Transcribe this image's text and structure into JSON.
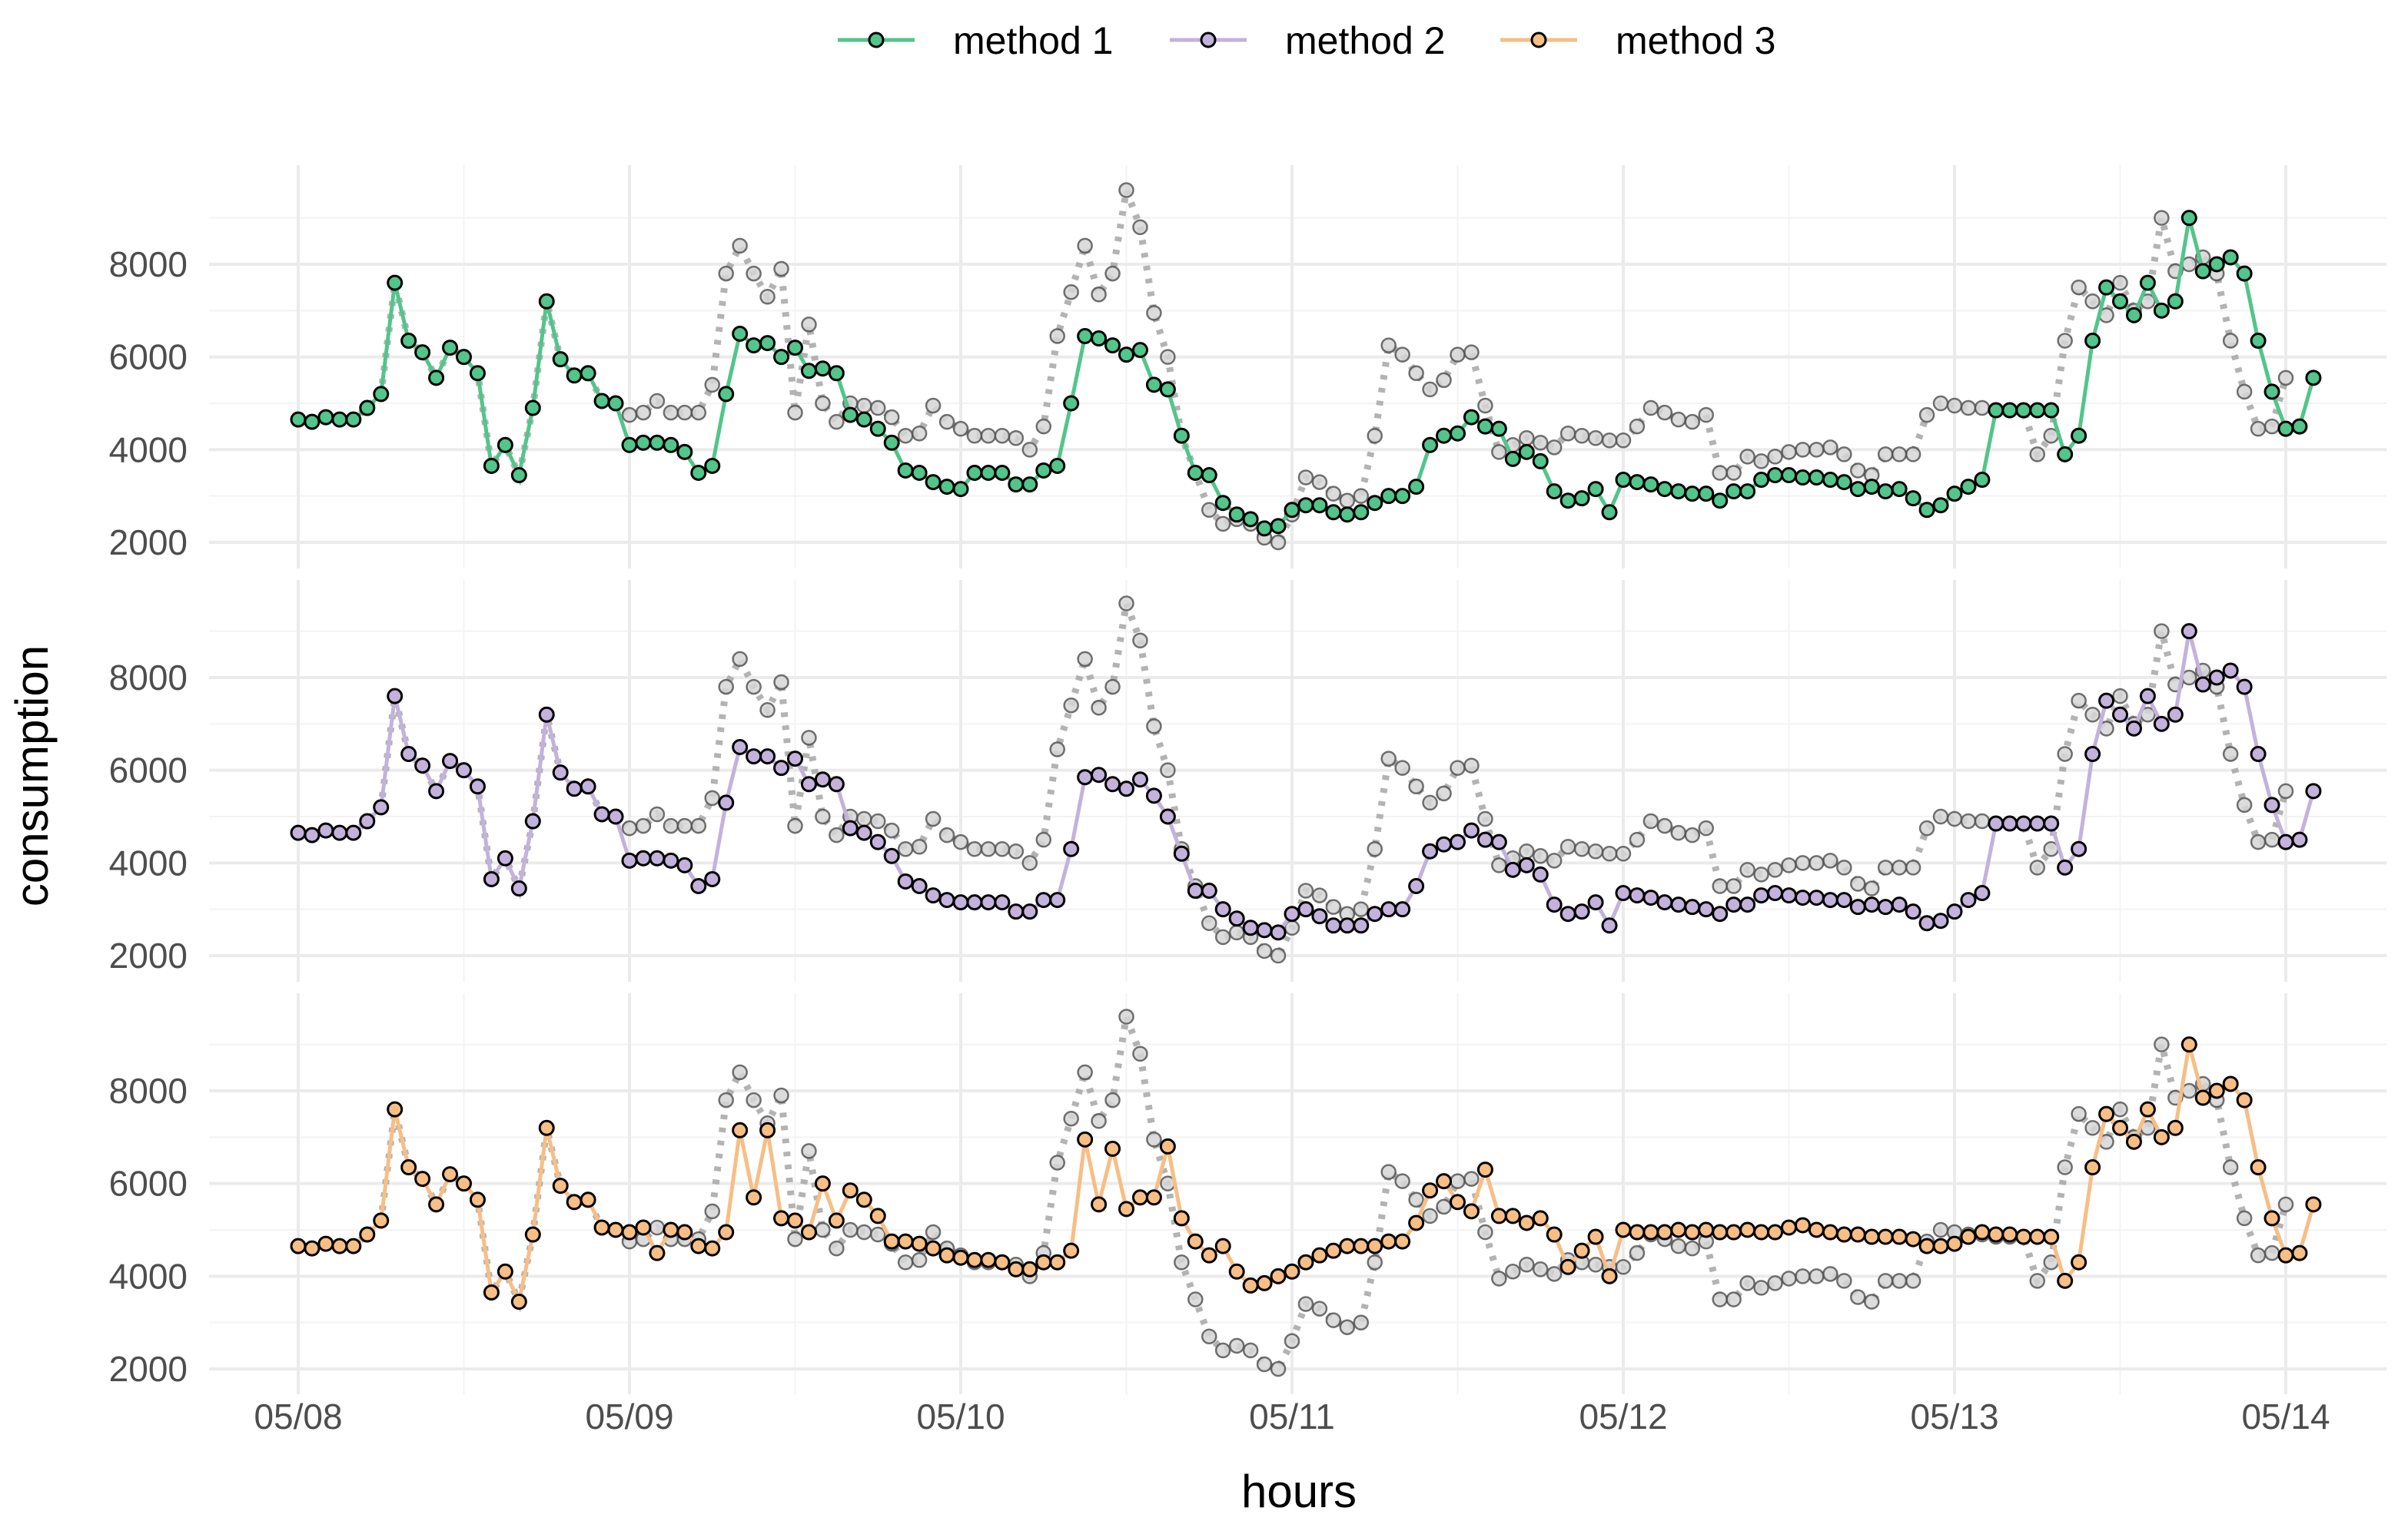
{
  "chart_data": {
    "type": "line",
    "title": "",
    "xlabel": "hours",
    "ylabel": "consumption",
    "x_tick_labels": [
      "05/08",
      "05/09",
      "05/10",
      "05/11",
      "05/12",
      "05/13",
      "05/14"
    ],
    "x_range_hours": [
      0,
      144
    ],
    "y_ticks": [
      2000,
      4000,
      6000,
      8000
    ],
    "ylim": [
      1800,
      9800
    ],
    "legend": {
      "position": "top",
      "entries": [
        {
          "name": "method 1",
          "color": "#52c58a"
        },
        {
          "name": "method 2",
          "color": "#c3b2dc"
        },
        {
          "name": "method 3",
          "color": "#f7be85"
        }
      ]
    },
    "reference_color": "#a6a6a6",
    "reference_style": "dotted",
    "actual": [
      4650,
      4600,
      4700,
      4650,
      4650,
      4900,
      5200,
      7600,
      6350,
      6100,
      5550,
      6200,
      6000,
      5650,
      3650,
      4100,
      3450,
      4900,
      7200,
      5950,
      5600,
      5650,
      5050,
      5000,
      4750,
      4800,
      5050,
      4800,
      4800,
      4800,
      5400,
      7800,
      8400,
      7800,
      7300,
      7900,
      4800,
      6700,
      5000,
      4600,
      5000,
      4950,
      4900,
      4700,
      4300,
      4350,
      4950,
      4600,
      4450,
      4300,
      4300,
      4300,
      4250,
      4000,
      4500,
      6450,
      7400,
      8400,
      7350,
      7800,
      9600,
      8800,
      6950,
      6000,
      4300,
      3500,
      2700,
      2400,
      2500,
      2400,
      2100,
      2000,
      2600,
      3400,
      3300,
      3050,
      2900,
      3000,
      4300,
      6250,
      6050,
      5650,
      5300,
      5500,
      6050,
      6100,
      4950,
      3950,
      4100,
      4250,
      4150,
      4050,
      4350,
      4300,
      4250,
      4200,
      4200,
      4500,
      4900,
      4800,
      4650,
      4600,
      4750,
      3500,
      3500,
      3850,
      3750,
      3850,
      3950,
      4000,
      4000,
      4050,
      3900,
      3550,
      3450,
      3900,
      3900,
      3900,
      4750,
      5000,
      4950,
      4900,
      4900,
      4850,
      4850,
      4850,
      3900,
      4300,
      6350,
      7500,
      7200,
      6900,
      7600,
      7000,
      7200,
      9000,
      7850,
      8000,
      8150,
      7800,
      6350,
      5250,
      4450,
      4500,
      5550
    ],
    "series": [
      {
        "name": "method 1",
        "color": "#52c58a",
        "values": [
          4650,
          4600,
          4700,
          4650,
          4650,
          4900,
          5200,
          7600,
          6350,
          6100,
          5550,
          6200,
          6000,
          5650,
          3650,
          4100,
          3450,
          4900,
          7200,
          5950,
          5600,
          5650,
          5050,
          5000,
          4100,
          4150,
          4150,
          4100,
          3950,
          3500,
          3650,
          5200,
          6500,
          6250,
          6300,
          6000,
          6200,
          5700,
          5750,
          5650,
          4750,
          4650,
          4450,
          4150,
          3550,
          3500,
          3300,
          3200,
          3150,
          3500,
          3500,
          3500,
          3250,
          3250,
          3550,
          3650,
          5000,
          6450,
          6400,
          6250,
          6050,
          6150,
          5400,
          5300,
          4300,
          3500,
          3450,
          2850,
          2600,
          2500,
          2300,
          2350,
          2700,
          2800,
          2800,
          2650,
          2600,
          2650,
          2850,
          3000,
          3000,
          3200,
          4100,
          4300,
          4350,
          4700,
          4500,
          4450,
          3800,
          3950,
          3750,
          3100,
          2900,
          2950,
          3150,
          2650,
          3350,
          3300,
          3250,
          3150,
          3100,
          3050,
          3050,
          2900,
          3100,
          3100,
          3350,
          3450,
          3450,
          3400,
          3400,
          3350,
          3300,
          3150,
          3200,
          3100,
          3150,
          2950,
          2700,
          2800,
          3050,
          3200,
          3350,
          4850,
          4850,
          4850,
          4850,
          4850,
          3900,
          4300,
          6350,
          7500,
          7200,
          6900,
          7600,
          7000,
          7200,
          9000,
          7850,
          8000,
          8150,
          7800,
          6350,
          5250,
          4450,
          4500,
          5550
        ]
      },
      {
        "name": "method 2",
        "color": "#c3b2dc",
        "values": [
          4650,
          4600,
          4700,
          4650,
          4650,
          4900,
          5200,
          7600,
          6350,
          6100,
          5550,
          6200,
          6000,
          5650,
          3650,
          4100,
          3450,
          4900,
          7200,
          5950,
          5600,
          5650,
          5050,
          5000,
          4050,
          4100,
          4100,
          4050,
          3950,
          3500,
          3650,
          5300,
          6500,
          6300,
          6300,
          6050,
          6250,
          5700,
          5800,
          5700,
          4750,
          4650,
          4450,
          4150,
          3600,
          3500,
          3300,
          3200,
          3150,
          3150,
          3150,
          3150,
          2950,
          2950,
          3200,
          3200,
          4300,
          5850,
          5900,
          5700,
          5600,
          5800,
          5450,
          5000,
          4200,
          3400,
          3400,
          3000,
          2800,
          2600,
          2550,
          2500,
          2900,
          3000,
          2850,
          2650,
          2650,
          2650,
          2900,
          3000,
          3000,
          3500,
          4250,
          4400,
          4450,
          4700,
          4500,
          4450,
          3850,
          3950,
          3750,
          3100,
          2900,
          2950,
          3150,
          2650,
          3350,
          3300,
          3250,
          3150,
          3100,
          3050,
          3000,
          2900,
          3100,
          3100,
          3300,
          3350,
          3300,
          3250,
          3250,
          3200,
          3200,
          3050,
          3100,
          3050,
          3100,
          2950,
          2700,
          2750,
          2950,
          3200,
          3350,
          4850,
          4850,
          4850,
          4850,
          4850,
          3900,
          4300,
          6350,
          7500,
          7200,
          6900,
          7600,
          7000,
          7200,
          9000,
          7850,
          8000,
          8150,
          7800,
          6350,
          5250,
          4450,
          4500,
          5550
        ]
      },
      {
        "name": "method 3",
        "color": "#f7be85",
        "values": [
          4650,
          4600,
          4700,
          4650,
          4650,
          4900,
          5200,
          7600,
          6350,
          6100,
          5550,
          6200,
          6000,
          5650,
          3650,
          4100,
          3450,
          4900,
          7200,
          5950,
          5600,
          5650,
          5050,
          5000,
          4950,
          5050,
          4500,
          5000,
          4950,
          4650,
          4600,
          4950,
          7150,
          5700,
          7150,
          5250,
          5200,
          4950,
          6000,
          5200,
          5850,
          5650,
          5300,
          4750,
          4750,
          4700,
          4600,
          4450,
          4400,
          4350,
          4350,
          4300,
          4150,
          4150,
          4300,
          4300,
          4550,
          6950,
          5550,
          6750,
          5450,
          5700,
          5700,
          6800,
          5250,
          4750,
          4450,
          4650,
          4100,
          3800,
          3850,
          4000,
          4100,
          4300,
          4450,
          4550,
          4650,
          4650,
          4650,
          4750,
          4750,
          5150,
          5850,
          6050,
          5600,
          5400,
          6300,
          5300,
          5300,
          5150,
          5250,
          4900,
          4200,
          4550,
          4850,
          4000,
          5000,
          4950,
          4950,
          4950,
          5000,
          4950,
          5000,
          4950,
          4950,
          5000,
          4950,
          4950,
          5050,
          5100,
          5000,
          4950,
          4900,
          4900,
          4850,
          4850,
          4850,
          4800,
          4650,
          4650,
          4700,
          4850,
          4950,
          4900,
          4900,
          4850,
          4850,
          4850,
          3900,
          4300,
          6350,
          7500,
          7200,
          6900,
          7600,
          7000,
          7200,
          9000,
          7850,
          8000,
          8150,
          7800,
          6350,
          5250,
          4450,
          4500,
          5550
        ]
      }
    ]
  }
}
